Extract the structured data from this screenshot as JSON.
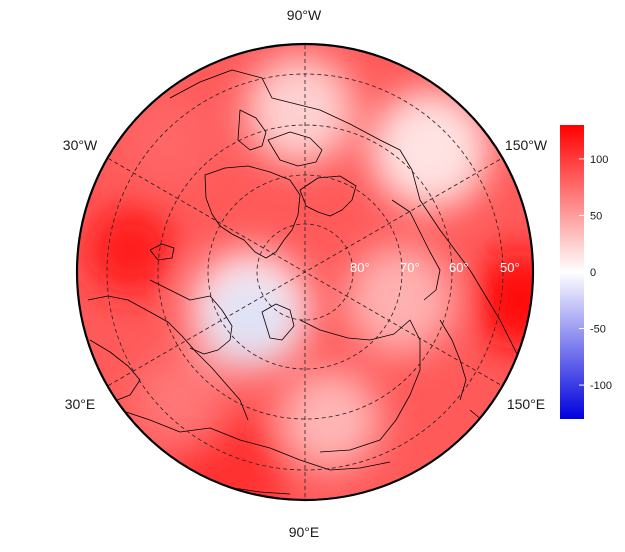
{
  "map": {
    "projection": "polar-stereographic-north",
    "longitude_labels": [
      {
        "text": "90°W",
        "bearing_deg": 0
      },
      {
        "text": "150°W",
        "bearing_deg": 60
      },
      {
        "text": "150°E",
        "bearing_deg": 120
      },
      {
        "text": "90°E",
        "bearing_deg": 180
      },
      {
        "text": "30°E",
        "bearing_deg": 240
      },
      {
        "text": "30°W",
        "bearing_deg": 300
      }
    ],
    "latitude_labels": [
      "80°",
      "70°",
      "60°",
      "50°"
    ],
    "colormap": {
      "low": "#0000dd",
      "mid": "#ffffff",
      "high": "#ff0000"
    },
    "field_description": "anomaly field, mostly positive (red) with a small negative (blue) area"
  },
  "colorbar": {
    "min": -130,
    "max": 130,
    "ticks": [
      "100",
      "50",
      "0",
      "-50",
      "-100"
    ],
    "tick_values": [
      100,
      50,
      0,
      -50,
      -100
    ]
  }
}
